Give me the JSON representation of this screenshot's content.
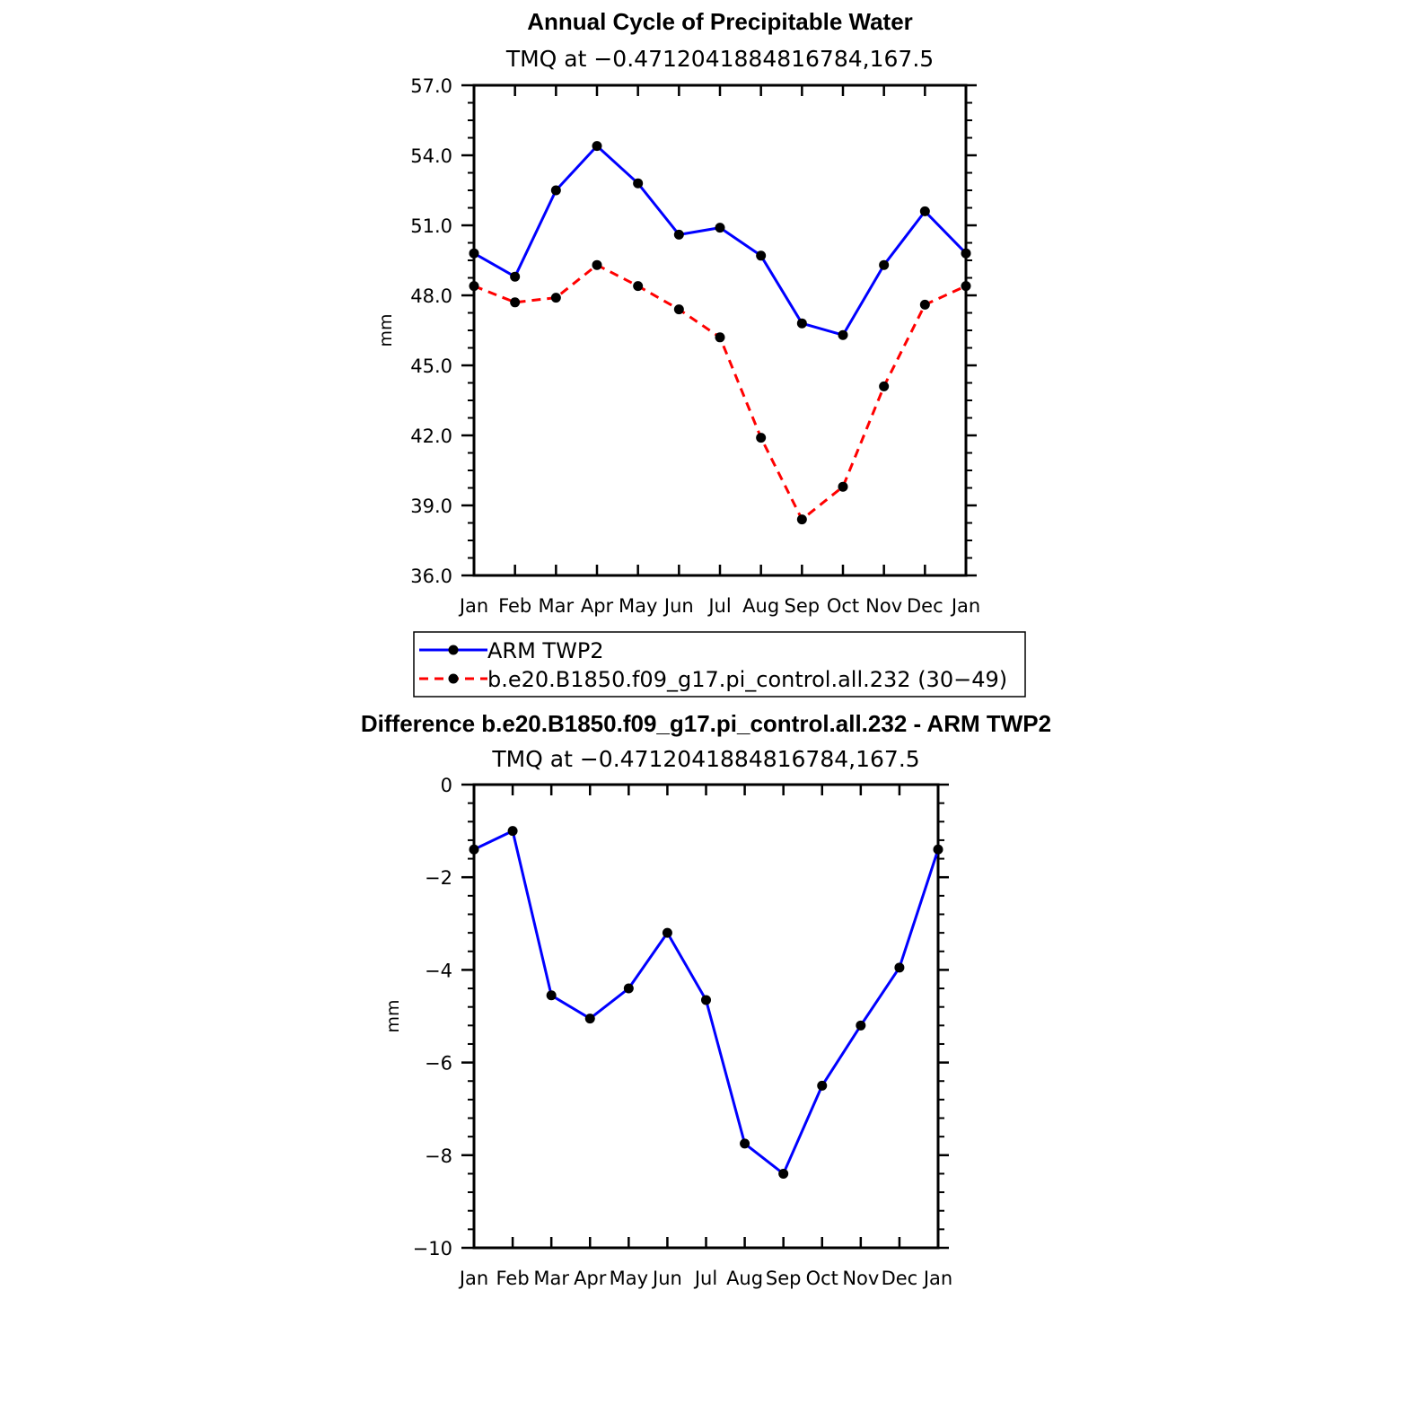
{
  "chart_data": [
    {
      "type": "line",
      "title": "Annual Cycle of Precipitable Water",
      "subtitle": "TMQ at −0.4712041884816784,167.5",
      "xlabel": "",
      "ylabel": "mm",
      "categories": [
        "Jan",
        "Feb",
        "Mar",
        "Apr",
        "May",
        "Jun",
        "Jul",
        "Aug",
        "Sep",
        "Oct",
        "Nov",
        "Dec",
        "Jan"
      ],
      "ylim": [
        36.0,
        57.0
      ],
      "yticks": [
        "36.0",
        "39.0",
        "42.0",
        "45.0",
        "48.0",
        "51.0",
        "54.0",
        "57.0"
      ],
      "series": [
        {
          "name": "ARM TWP2",
          "color": "#0000ff",
          "dash": "solid",
          "values": [
            49.8,
            48.8,
            52.5,
            54.4,
            52.8,
            50.6,
            50.9,
            49.7,
            46.8,
            46.3,
            49.3,
            51.6,
            49.8
          ]
        },
        {
          "name": "b.e20.B1850.f09_g17.pi_control.all.232 (30−49)",
          "color": "#ff0000",
          "dash": "dashed",
          "values": [
            48.4,
            47.7,
            47.9,
            49.3,
            48.4,
            47.4,
            46.2,
            41.9,
            38.4,
            39.8,
            44.1,
            47.6,
            48.4
          ]
        }
      ],
      "legend": "below"
    },
    {
      "type": "line",
      "title": "Difference b.e20.B1850.f09_g17.pi_control.all.232 - ARM TWP2",
      "subtitle": "TMQ at −0.4712041884816784,167.5",
      "xlabel": "",
      "ylabel": "mm",
      "categories": [
        "Jan",
        "Feb",
        "Mar",
        "Apr",
        "May",
        "Jun",
        "Jul",
        "Aug",
        "Sep",
        "Oct",
        "Nov",
        "Dec",
        "Jan"
      ],
      "ylim": [
        -10,
        0
      ],
      "yticks": [
        "−10",
        "−8",
        "−6",
        "−4",
        "−2",
        "0"
      ],
      "series": [
        {
          "name": "Difference",
          "color": "#0000ff",
          "dash": "solid",
          "values": [
            -1.4,
            -1.0,
            -4.55,
            -5.05,
            -4.4,
            -3.2,
            -4.65,
            -7.75,
            -8.4,
            -6.5,
            -5.2,
            -3.95,
            -1.4
          ]
        }
      ]
    }
  ]
}
